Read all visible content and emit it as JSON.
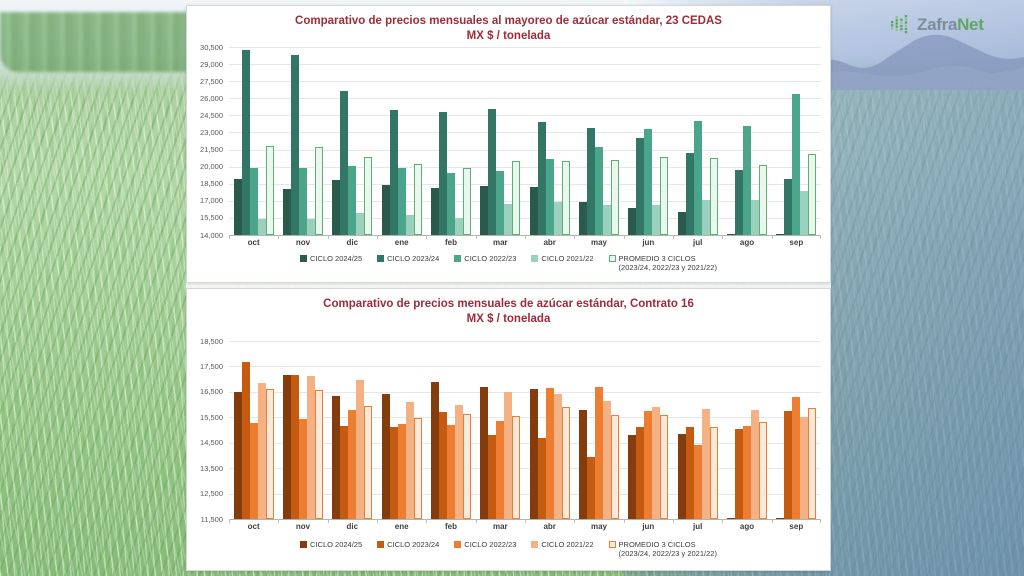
{
  "logo": {
    "zafra": "Zafra",
    "net": "Net"
  },
  "chart_data": [
    {
      "type": "bar",
      "title": "Comparativo de precios mensuales al mayoreo de azúcar estándar, 23 CEDAS",
      "subtitle": "MX $ / tonelada",
      "categories": [
        "oct",
        "nov",
        "dic",
        "ene",
        "feb",
        "mar",
        "abr",
        "may",
        "jun",
        "jul",
        "ago",
        "sep"
      ],
      "ylim": [
        14000,
        30500
      ],
      "ystep": 1500,
      "grid": true,
      "legend_position": "bottom",
      "series": [
        {
          "name": "CICLO 2024/25",
          "color": "#2a5a4c",
          "values": [
            18900,
            18000,
            18800,
            18400,
            18100,
            18300,
            18200,
            16900,
            16400,
            16000,
            14100,
            14100
          ]
        },
        {
          "name": "CICLO 2023/24",
          "color": "#327766",
          "values": [
            30200,
            29800,
            26600,
            25000,
            24800,
            25100,
            23900,
            23400,
            22500,
            21200,
            19700,
            18900
          ]
        },
        {
          "name": "CICLO 2022/23",
          "color": "#4aa58a",
          "values": [
            19900,
            19900,
            20100,
            19900,
            19400,
            19600,
            20650,
            21700,
            23300,
            24000,
            23600,
            26400
          ]
        },
        {
          "name": "CICLO 2021/22",
          "color": "#9ad0bd",
          "values": [
            15400,
            15400,
            15900,
            15800,
            15450,
            16700,
            16900,
            16600,
            16650,
            17100,
            17100,
            17900
          ]
        },
        {
          "name": "PROMEDIO 3 CICLOS",
          "name2": "(2023/24, 2022/23 y 2021/22)",
          "color": "#eaf7ee",
          "border": "#5fae74",
          "values": [
            21830,
            21700,
            20870,
            20230,
            19880,
            20470,
            20480,
            20570,
            20820,
            20770,
            20130,
            21070
          ]
        }
      ]
    },
    {
      "type": "bar",
      "title": "Comparativo de precios mensuales de azúcar estándar, Contrato 16",
      "subtitle": "MX $ / tonelada",
      "categories": [
        "oct",
        "nov",
        "dic",
        "ene",
        "feb",
        "mar",
        "abr",
        "may",
        "jun",
        "jul",
        "ago",
        "sep"
      ],
      "ylim": [
        11500,
        18500
      ],
      "ystep": 1000,
      "grid": true,
      "legend_position": "bottom",
      "series": [
        {
          "name": "CICLO 2024/25",
          "color": "#843c0c",
          "values": [
            16500,
            17150,
            16350,
            16400,
            16900,
            16700,
            16600,
            15800,
            14800,
            14850,
            11540,
            11540
          ]
        },
        {
          "name": "CICLO 2023/24",
          "color": "#c55a11",
          "values": [
            17690,
            17170,
            15150,
            15100,
            15700,
            14800,
            14700,
            13950,
            15100,
            15130,
            15030,
            15750
          ]
        },
        {
          "name": "CICLO 2022/23",
          "color": "#ed7d31",
          "values": [
            15280,
            15440,
            15780,
            15250,
            15200,
            15350,
            16650,
            16700,
            15730,
            14400,
            15150,
            16300
          ]
        },
        {
          "name": "CICLO 2021/22",
          "color": "#f4b183",
          "values": [
            16830,
            17130,
            16950,
            16100,
            16000,
            16500,
            16400,
            16150,
            15900,
            15820,
            15780,
            15520
          ]
        },
        {
          "name": "PROMEDIO 3 CICLOS",
          "name2": "(2023/24, 2022/23 y 2021/22)",
          "color": "#fbe9dc",
          "border": "#ed7d31",
          "values": [
            16600,
            16580,
            15960,
            15480,
            15630,
            15550,
            15920,
            15600,
            15580,
            15120,
            15320,
            15860
          ]
        }
      ]
    }
  ]
}
